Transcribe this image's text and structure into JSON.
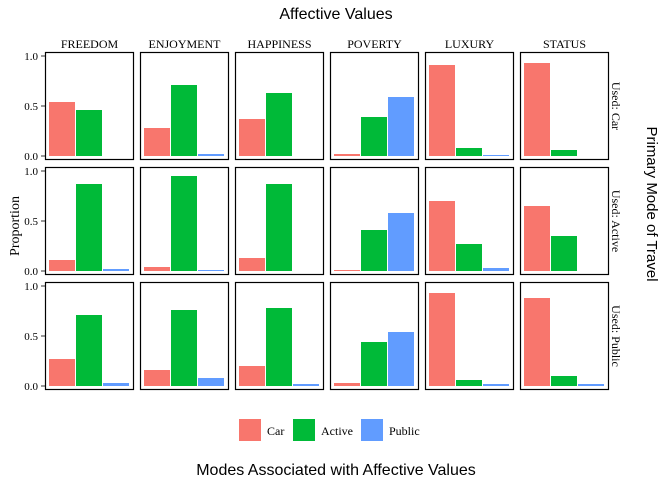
{
  "chart_data": {
    "type": "bar",
    "title": "Affective Values",
    "xlabel": "Modes Associated with Affective Values",
    "ylabel": "Proportion",
    "row_strip_title": "Primary Mode of Travel",
    "ylim": [
      0,
      1
    ],
    "yticks": [
      "0.0",
      "0.5",
      "1.0"
    ],
    "grid": false,
    "legend_position": "bottom",
    "columns": [
      "FREEDOM",
      "ENJOYMENT",
      "HAPPINESS",
      "POVERTY",
      "LUXURY",
      "STATUS"
    ],
    "rows": [
      "Used: Car",
      "Used: Active",
      "Used: Public"
    ],
    "series": [
      {
        "name": "Car",
        "color": "#F8766D",
        "values": [
          [
            0.54,
            0.28,
            0.37,
            0.02,
            0.91,
            0.93
          ],
          [
            0.11,
            0.04,
            0.13,
            0.01,
            0.7,
            0.65
          ],
          [
            0.27,
            0.16,
            0.2,
            0.03,
            0.93,
            0.88
          ]
        ]
      },
      {
        "name": "Active",
        "color": "#00BA38",
        "values": [
          [
            0.46,
            0.71,
            0.63,
            0.39,
            0.08,
            0.06
          ],
          [
            0.87,
            0.95,
            0.87,
            0.41,
            0.27,
            0.35
          ],
          [
            0.71,
            0.76,
            0.78,
            0.44,
            0.06,
            0.1
          ]
        ]
      },
      {
        "name": "Public",
        "color": "#619CFF",
        "values": [
          [
            null,
            0.02,
            null,
            0.59,
            0.01,
            null
          ],
          [
            0.02,
            0.01,
            null,
            0.58,
            0.03,
            null
          ],
          [
            0.03,
            0.08,
            0.02,
            0.54,
            0.02,
            0.02
          ]
        ]
      }
    ]
  }
}
